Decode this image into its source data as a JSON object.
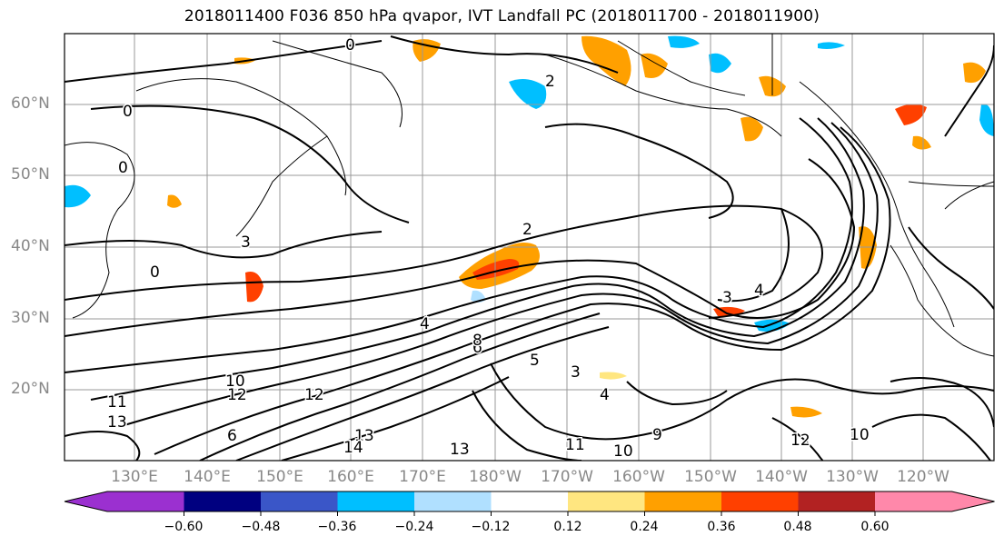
{
  "title": "2018011400 F036 850 hPa qvapor, IVT Landfall PC (2018011700 - 2018011900)",
  "map": {
    "lat_labels": [
      "60°N",
      "50°N",
      "40°N",
      "30°N",
      "20°N"
    ],
    "lon_labels": [
      "130°E",
      "140°E",
      "150°E",
      "160°E",
      "170°E",
      "180°W",
      "170°W",
      "160°W",
      "150°W",
      "140°W",
      "130°W",
      "120°W"
    ],
    "contour_labels": [
      "0",
      "0",
      "0",
      "0",
      "2",
      "2",
      "3",
      "3",
      "3",
      "4",
      "4",
      "4",
      "5",
      "6",
      "6",
      "8",
      "9",
      "10",
      "10",
      "10",
      "11",
      "11",
      "12",
      "12",
      "12",
      "13",
      "13",
      "13",
      "14"
    ]
  },
  "colorbar": {
    "colors": [
      "#9b30d0",
      "#000080",
      "#3a56c8",
      "#00bfff",
      "#b0e0ff",
      "#ffffff",
      "#ffe680",
      "#ffa000",
      "#ff4000",
      "#b22222",
      "#ff88aa",
      "#ff88aa"
    ],
    "left_extend_color": "#9b30d0",
    "right_extend_color": "#ff88aa",
    "tick_labels": [
      "−0.60",
      "−0.48",
      "−0.36",
      "−0.24",
      "−0.12",
      "0.12",
      "0.24",
      "0.36",
      "0.48",
      "0.60"
    ]
  },
  "colors": {
    "positive_fill_light": "#ffe680",
    "positive_fill_mid": "#ffa000",
    "positive_fill_strong": "#ff4000",
    "negative_fill_light": "#b0e0ff",
    "negative_fill_mid": "#00bfff",
    "contour": "#000000",
    "grid": "#999999",
    "axis_label": "#888888"
  }
}
